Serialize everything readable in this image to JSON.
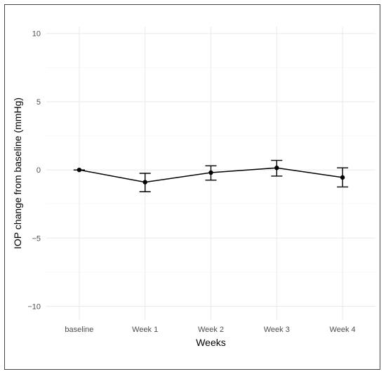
{
  "chart_data": {
    "type": "line",
    "xlabel": "Weeks",
    "ylabel": "IOP change from baseline (mmHg)",
    "categories": [
      "baseline",
      "Week 1",
      "Week 2",
      "Week 3",
      "Week 4"
    ],
    "series": [
      {
        "values": [
          0.0,
          -0.9,
          -0.2,
          0.15,
          -0.55
        ],
        "error_low": [
          0.0,
          -1.6,
          -0.75,
          -0.45,
          -1.25
        ],
        "error_high": [
          0.0,
          -0.25,
          0.3,
          0.7,
          0.15
        ]
      }
    ],
    "ylim": [
      -11,
      10.5
    ],
    "yticks": [
      10,
      5,
      0,
      -5,
      -10
    ],
    "ytick_labels": [
      "10",
      "5",
      "0",
      "−5",
      "−10"
    ],
    "grid": true,
    "legend": "none",
    "colors": {
      "line": "#000000",
      "grid": "#ebebeb",
      "text": "#4d4d4d"
    }
  }
}
